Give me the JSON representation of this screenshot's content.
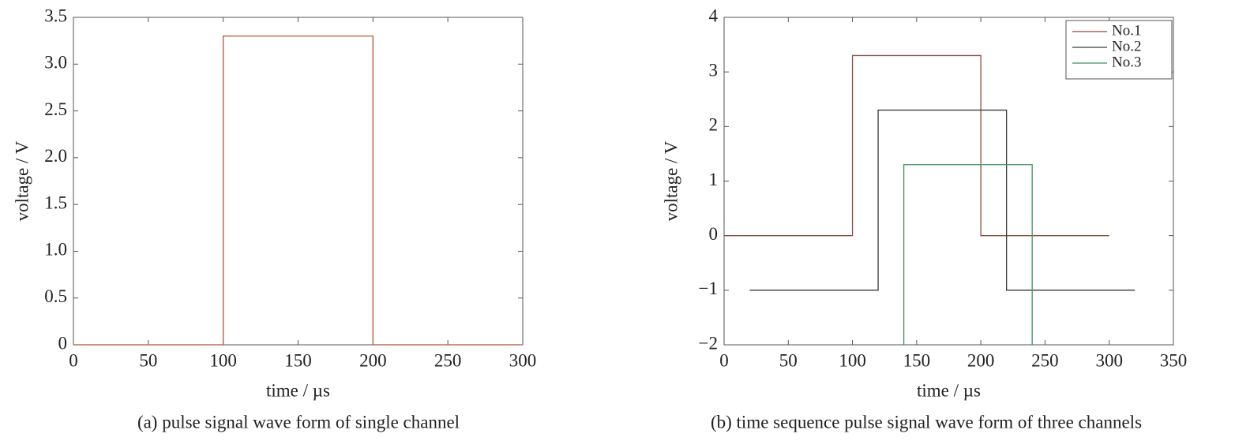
{
  "chart_data": [
    {
      "type": "line",
      "caption": "(a) pulse signal wave form of single channel",
      "x_label": "time / µs",
      "y_label": "voltage / V",
      "xlim": [
        0,
        300
      ],
      "xticks": [
        0,
        50,
        100,
        150,
        200,
        250,
        300
      ],
      "ylim": [
        0,
        3.5
      ],
      "yticks": [
        0,
        0.5,
        {
          "value": 1,
          "label": "1.0"
        },
        1.5,
        {
          "value": 2,
          "label": "2.0"
        },
        2.5,
        {
          "value": 3,
          "label": "3.0"
        },
        3.5
      ],
      "grid": false,
      "series": [
        {
          "color": "#b0563f",
          "x": [
            0,
            100,
            100,
            200,
            200,
            300
          ],
          "values": [
            0,
            0,
            3.3,
            3.3,
            0,
            0
          ]
        }
      ]
    },
    {
      "type": "line",
      "caption": "(b) time sequence pulse signal wave form of three channels",
      "x_label": "time / µs",
      "y_label": "voltage / V",
      "xlim": [
        0,
        350
      ],
      "xticks": [
        0,
        50,
        100,
        150,
        200,
        250,
        300,
        350
      ],
      "ylim": [
        -2,
        4
      ],
      "yticks": [
        {
          "value": -2,
          "label": "−2"
        },
        {
          "value": -1,
          "label": "−1"
        },
        0,
        1,
        2,
        3,
        4
      ],
      "grid": false,
      "legend": "upper right",
      "series": [
        {
          "name": "No.1",
          "color": "#8a4b3e",
          "x": [
            0,
            100,
            100,
            200,
            200,
            300
          ],
          "values": [
            0,
            0,
            3.3,
            3.3,
            0,
            0
          ]
        },
        {
          "name": "No.2",
          "color": "#3a3a3a",
          "x": [
            20,
            120,
            120,
            220,
            220,
            320
          ],
          "values": [
            -1,
            -1,
            2.3,
            2.3,
            -1,
            -1
          ]
        },
        {
          "name": "No.3",
          "color": "#3f9160",
          "x": [
            140,
            140,
            240,
            240
          ],
          "values": [
            -2,
            1.3,
            1.3,
            -2
          ]
        }
      ]
    }
  ]
}
